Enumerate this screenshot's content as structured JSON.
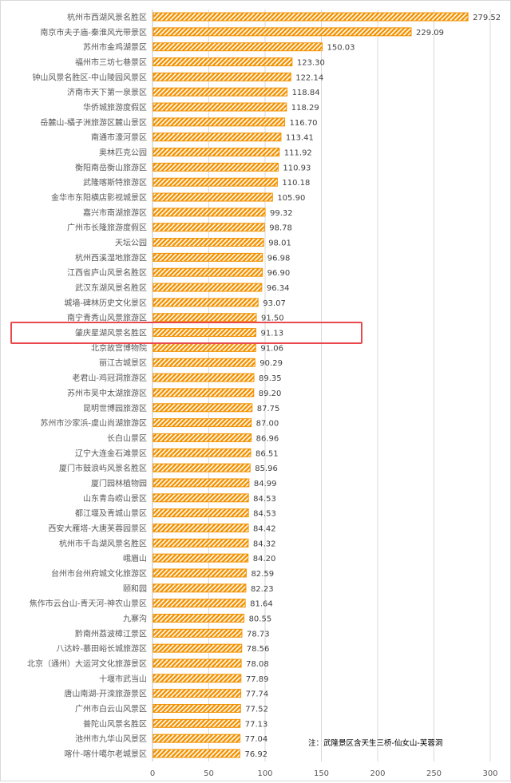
{
  "chart_data": {
    "type": "bar",
    "orientation": "horizontal",
    "categories": [
      "杭州市西湖风景名胜区",
      "南京市夫子庙-秦淮风光带景区",
      "苏州市金鸡湖景区",
      "福州市三坊七巷景区",
      "钟山风景名胜区-中山陵园风景区",
      "济南市天下第一泉景区",
      "华侨城旅游度假区",
      "岳麓山-橘子洲旅游区麓山景区",
      "南通市濠河景区",
      "奥林匹克公园",
      "衡阳南岳衡山旅游区",
      "武隆喀斯特旅游区",
      "金华市东阳横店影视城景区",
      "嘉兴市南湖旅游区",
      "广州市长隆旅游度假区",
      "天坛公园",
      "杭州西溪湿地旅游区",
      "江西省庐山风景名胜区",
      "武汉东湖风景名胜区",
      "城墙-碑林历史文化景区",
      "南宁青秀山风景旅游区",
      "肇庆星湖风景名胜区",
      "北京故宫博物院",
      "丽江古城景区",
      "老君山-鸡冠洞旅游区",
      "苏州市吴中太湖旅游区",
      "昆明世博园旅游区",
      "苏州市沙家浜-虞山尚湖旅游区",
      "长白山景区",
      "辽宁大连金石滩景区",
      "厦门市鼓浪屿风景名胜区",
      "厦门园林植物园",
      "山东青岛崂山景区",
      "都江堰及青城山景区",
      "西安大雁塔-大唐芙蓉园景区",
      "杭州市千岛湖风景名胜区",
      "峨眉山",
      "台州市台州府城文化旅游区",
      "颐和园",
      "焦作市云台山-青天河-神农山景区",
      "九寨沟",
      "黔南州荔波樟江景区",
      "八达岭-慕田峪长城旅游区",
      "北京（通州）大运河文化旅游景区",
      "十堰市武当山",
      "唐山南湖-开滦旅游景区",
      "广州市白云山风景区",
      "普陀山风景名胜区",
      "池州市九华山风景区",
      "喀什-喀什噶尔老城景区"
    ],
    "values": [
      279.52,
      229.09,
      150.03,
      123.3,
      122.14,
      118.84,
      118.29,
      116.7,
      113.41,
      111.92,
      110.93,
      110.18,
      105.9,
      99.32,
      98.78,
      98.01,
      96.98,
      96.9,
      96.34,
      93.07,
      91.5,
      91.13,
      91.06,
      90.29,
      89.35,
      89.2,
      87.75,
      87.0,
      86.96,
      86.51,
      85.96,
      84.99,
      84.53,
      84.53,
      84.42,
      84.32,
      84.2,
      82.59,
      82.23,
      81.64,
      80.55,
      78.73,
      78.56,
      78.08,
      77.89,
      77.74,
      77.52,
      77.13,
      77.04,
      76.92
    ],
    "value_labels": [
      "279.52",
      "229.09",
      "150.03",
      "123.30",
      "122.14",
      "118.84",
      "118.29",
      "116.70",
      "113.41",
      "111.92",
      "110.93",
      "110.18",
      "105.90",
      "99.32",
      "98.78",
      "98.01",
      "96.98",
      "96.90",
      "96.34",
      "93.07",
      "91.50",
      "91.13",
      "91.06",
      "90.29",
      "89.35",
      "89.20",
      "87.75",
      "87.00",
      "86.96",
      "86.51",
      "85.96",
      "84.99",
      "84.53",
      "84.53",
      "84.42",
      "84.32",
      "84.20",
      "82.59",
      "82.23",
      "81.64",
      "80.55",
      "78.73",
      "78.56",
      "78.08",
      "77.89",
      "77.74",
      "77.52",
      "77.13",
      "77.04",
      "76.92"
    ],
    "xlim": [
      0,
      300
    ],
    "x_ticks": [
      "0",
      "50",
      "100",
      "150",
      "200",
      "250",
      "300"
    ],
    "grid": true,
    "bar_color": "#f39200",
    "bar_fill": "diagonal-hatch",
    "highlighted_category": "肇庆星湖风景名胜区",
    "highlight_color": "#e8484e",
    "annotation": "注：武隆景区含天生三桥-仙女山-芙蓉洞"
  }
}
